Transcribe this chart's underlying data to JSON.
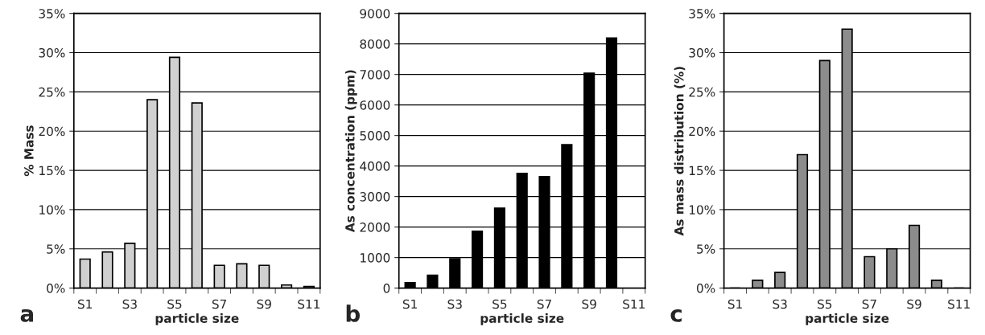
{
  "chart_data": [
    {
      "type": "bar",
      "xlabel": "particle size",
      "ylabel": "% Mass",
      "annotations": [
        "a"
      ],
      "categories": [
        "S1",
        null,
        "S3",
        null,
        "S5",
        null,
        "S7",
        null,
        "S9",
        null,
        "S11"
      ],
      "values": [
        3.7,
        4.6,
        5.7,
        24.0,
        29.4,
        23.6,
        2.9,
        3.1,
        2.9,
        0.4,
        0.2
      ],
      "color": "#d0d0d0",
      "ylim": [
        0,
        35
      ],
      "yticks": [
        {
          "value": 0,
          "label": "0%"
        },
        {
          "value": 5,
          "label": "5%"
        },
        {
          "value": 10,
          "label": "10%"
        },
        {
          "value": 15,
          "label": "15%"
        },
        {
          "value": 20,
          "label": "20%"
        },
        {
          "value": 25,
          "label": "25%"
        },
        {
          "value": 30,
          "label": "30%"
        },
        {
          "value": 35,
          "label": "35%"
        }
      ],
      "grid": "y"
    },
    {
      "type": "bar",
      "xlabel": "particle size",
      "ylabel": "As concentration (ppm)",
      "annotations": [
        "b"
      ],
      "categories": [
        "S1",
        null,
        "S3",
        null,
        "S5",
        null,
        "S7",
        null,
        "S9",
        null,
        "S11"
      ],
      "values": [
        180,
        420,
        960,
        1860,
        2620,
        3760,
        3650,
        4700,
        7040,
        8190,
        null
      ],
      "color": "#000000",
      "ylim": [
        0,
        9000
      ],
      "yticks": [
        0,
        1000,
        2000,
        3000,
        4000,
        5000,
        6000,
        7000,
        8000,
        9000
      ],
      "grid": "y"
    },
    {
      "type": "bar",
      "xlabel": "particle size",
      "ylabel": "As mass distribution (%)",
      "annotations": [
        "c"
      ],
      "categories": [
        "S1",
        null,
        "S3",
        null,
        "S5",
        null,
        "S7",
        null,
        "S9",
        null,
        "S11"
      ],
      "values": [
        0,
        1,
        2,
        17,
        29,
        33,
        4,
        5,
        8,
        1,
        0
      ],
      "color": "#8c8c8c",
      "ylim": [
        0,
        35
      ],
      "yticks": [
        {
          "value": 0,
          "label": "0%"
        },
        {
          "value": 5,
          "label": "5%"
        },
        {
          "value": 10,
          "label": "10%"
        },
        {
          "value": 15,
          "label": "15%"
        },
        {
          "value": 20,
          "label": "20%"
        },
        {
          "value": 25,
          "label": "25%"
        },
        {
          "value": 30,
          "label": "30%"
        },
        {
          "value": 35,
          "label": "35%"
        }
      ],
      "grid": "y"
    }
  ]
}
